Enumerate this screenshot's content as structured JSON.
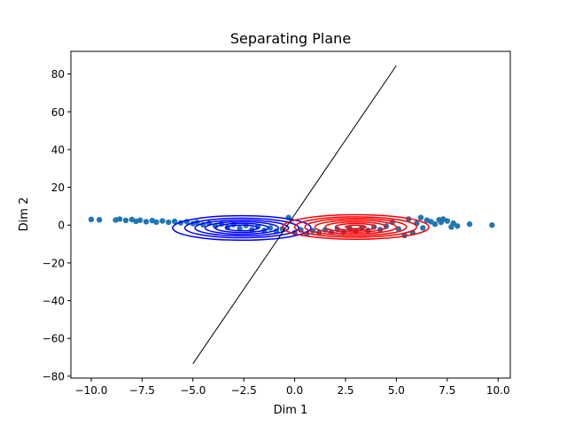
{
  "chart_data": {
    "type": "scatter",
    "title": "Separating Plane",
    "xlabel": "Dim 1",
    "ylabel": "Dim 2",
    "xlim": [
      -11.0,
      10.6
    ],
    "ylim": [
      -81,
      92
    ],
    "xticks": [
      -10.0,
      -7.5,
      -5.0,
      -2.5,
      0.0,
      2.5,
      5.0,
      7.5,
      10.0
    ],
    "xtick_labels": [
      "−10.0",
      "−7.5",
      "−5.0",
      "−2.5",
      "0.0",
      "2.5",
      "5.0",
      "7.5",
      "10.0"
    ],
    "yticks": [
      -80,
      -60,
      -40,
      -20,
      0,
      20,
      40,
      60,
      80
    ],
    "ytick_labels": [
      "−80",
      "−60",
      "−40",
      "−20",
      "0",
      "20",
      "40",
      "60",
      "80"
    ],
    "grid": false,
    "legend": "none",
    "colors": {
      "points": "#1f77b4",
      "class_a_contours": "#0000ff",
      "class_b_contours": "#ff0000",
      "line": "#000000"
    },
    "scatter_points": [
      {
        "x": -10.0,
        "y": 3.0
      },
      {
        "x": -9.6,
        "y": 2.8
      },
      {
        "x": -8.8,
        "y": 2.7
      },
      {
        "x": -8.6,
        "y": 3.2
      },
      {
        "x": -8.3,
        "y": 2.5
      },
      {
        "x": -8.0,
        "y": 3.0
      },
      {
        "x": -7.8,
        "y": 2.0
      },
      {
        "x": -7.6,
        "y": 2.6
      },
      {
        "x": -7.3,
        "y": 1.8
      },
      {
        "x": -7.0,
        "y": 2.4
      },
      {
        "x": -6.8,
        "y": 1.6
      },
      {
        "x": -6.5,
        "y": 2.2
      },
      {
        "x": -6.2,
        "y": 1.5
      },
      {
        "x": -5.9,
        "y": 2.0
      },
      {
        "x": -5.6,
        "y": 1.2
      },
      {
        "x": -5.3,
        "y": 1.8
      },
      {
        "x": -5.0,
        "y": 0.8
      },
      {
        "x": -4.8,
        "y": 1.4
      },
      {
        "x": -4.5,
        "y": 0.2
      },
      {
        "x": -4.2,
        "y": 1.0
      },
      {
        "x": -3.9,
        "y": -0.5
      },
      {
        "x": -3.6,
        "y": 0.6
      },
      {
        "x": -3.3,
        "y": -1.2
      },
      {
        "x": -3.0,
        "y": 0.3
      },
      {
        "x": -2.7,
        "y": -1.8
      },
      {
        "x": -2.4,
        "y": -0.2
      },
      {
        "x": -2.1,
        "y": -2.4
      },
      {
        "x": -1.8,
        "y": -0.8
      },
      {
        "x": -1.5,
        "y": -2.8
      },
      {
        "x": -1.2,
        "y": -1.5
      },
      {
        "x": -0.9,
        "y": -3.2
      },
      {
        "x": -0.6,
        "y": -2.0
      },
      {
        "x": -0.3,
        "y": 4.0
      },
      {
        "x": 0.0,
        "y": -4.0
      },
      {
        "x": 0.3,
        "y": -2.5
      },
      {
        "x": 0.6,
        "y": -4.5
      },
      {
        "x": 0.9,
        "y": -3.0
      },
      {
        "x": 1.2,
        "y": -4.0
      },
      {
        "x": 1.5,
        "y": -2.5
      },
      {
        "x": 1.8,
        "y": -3.8
      },
      {
        "x": 2.1,
        "y": -2.2
      },
      {
        "x": 2.4,
        "y": -3.5
      },
      {
        "x": 2.7,
        "y": -1.8
      },
      {
        "x": 3.0,
        "y": -3.2
      },
      {
        "x": 3.3,
        "y": -1.4
      },
      {
        "x": 3.6,
        "y": -2.8
      },
      {
        "x": 3.9,
        "y": -1.0
      },
      {
        "x": 4.2,
        "y": -2.4
      },
      {
        "x": 4.5,
        "y": -0.6
      },
      {
        "x": 4.8,
        "y": 1.5
      },
      {
        "x": 5.1,
        "y": -2.0
      },
      {
        "x": 5.4,
        "y": -5.5
      },
      {
        "x": 5.6,
        "y": 3.2
      },
      {
        "x": 5.8,
        "y": -4.0
      },
      {
        "x": 6.0,
        "y": 1.0
      },
      {
        "x": 6.2,
        "y": 4.0
      },
      {
        "x": 6.3,
        "y": -1.5
      },
      {
        "x": 6.5,
        "y": 2.6
      },
      {
        "x": 6.7,
        "y": 1.8
      },
      {
        "x": 6.9,
        "y": 0.5
      },
      {
        "x": 7.1,
        "y": 2.8
      },
      {
        "x": 7.2,
        "y": 1.5
      },
      {
        "x": 7.3,
        "y": 3.2
      },
      {
        "x": 7.5,
        "y": 2.2
      },
      {
        "x": 7.7,
        "y": -1.0
      },
      {
        "x": 7.8,
        "y": 1.0
      },
      {
        "x": 8.0,
        "y": -0.5
      },
      {
        "x": 8.6,
        "y": 0.5
      },
      {
        "x": 9.7,
        "y": 0.0
      }
    ],
    "contours": [
      {
        "name": "class_a",
        "center": [
          -2.6,
          -1.5
        ],
        "color": "#0000ff",
        "rx": [
          3.4,
          2.8,
          2.3,
          1.8,
          1.3,
          0.8
        ],
        "ry": [
          6.5,
          5.2,
          4.2,
          3.3,
          2.4,
          1.5
        ]
      },
      {
        "name": "class_b",
        "center": [
          3.0,
          -1.0
        ],
        "color": "#ff0000",
        "rx": [
          3.6,
          3.0,
          2.5,
          2.0,
          1.5,
          1.0,
          0.5
        ],
        "ry": [
          6.5,
          5.4,
          4.5,
          3.6,
          2.7,
          1.8,
          0.9
        ]
      }
    ],
    "separating_line": {
      "x": [
        -5.0,
        5.0
      ],
      "y": [
        -73.4,
        84.5
      ]
    }
  }
}
